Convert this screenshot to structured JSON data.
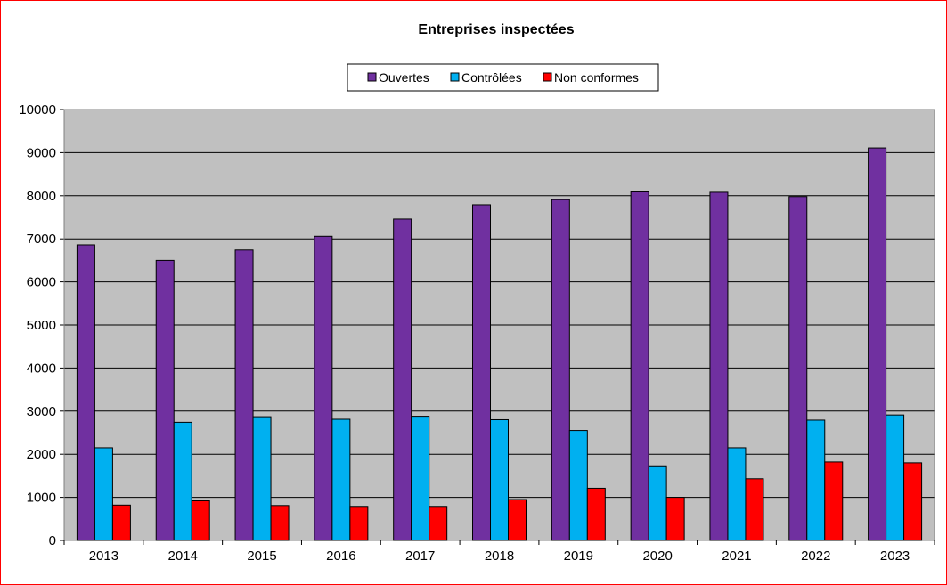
{
  "chart_data": {
    "type": "bar",
    "title": "Entreprises inspectées",
    "xlabel": "",
    "ylabel": "",
    "ylim": [
      0,
      10000
    ],
    "yticks": [
      0,
      1000,
      2000,
      3000,
      4000,
      5000,
      6000,
      7000,
      8000,
      9000,
      10000
    ],
    "grid": true,
    "legend_position": "top-center",
    "plot_background": "#c0c0c0",
    "categories": [
      "2013",
      "2014",
      "2015",
      "2016",
      "2017",
      "2018",
      "2019",
      "2020",
      "2021",
      "2022",
      "2023"
    ],
    "series": [
      {
        "name": "Ouvertes",
        "color": "#7030a0",
        "values": [
          6860,
          6500,
          6740,
          7060,
          7460,
          7790,
          7910,
          8090,
          8080,
          7980,
          9110
        ]
      },
      {
        "name": "Contrôlées",
        "color": "#00b0f0",
        "values": [
          2150,
          2740,
          2870,
          2810,
          2880,
          2800,
          2550,
          1730,
          2150,
          2790,
          2910
        ]
      },
      {
        "name": "Non conformes",
        "color": "#ff0000",
        "values": [
          820,
          920,
          810,
          790,
          790,
          950,
          1210,
          1000,
          1430,
          1820,
          1800
        ]
      }
    ]
  }
}
